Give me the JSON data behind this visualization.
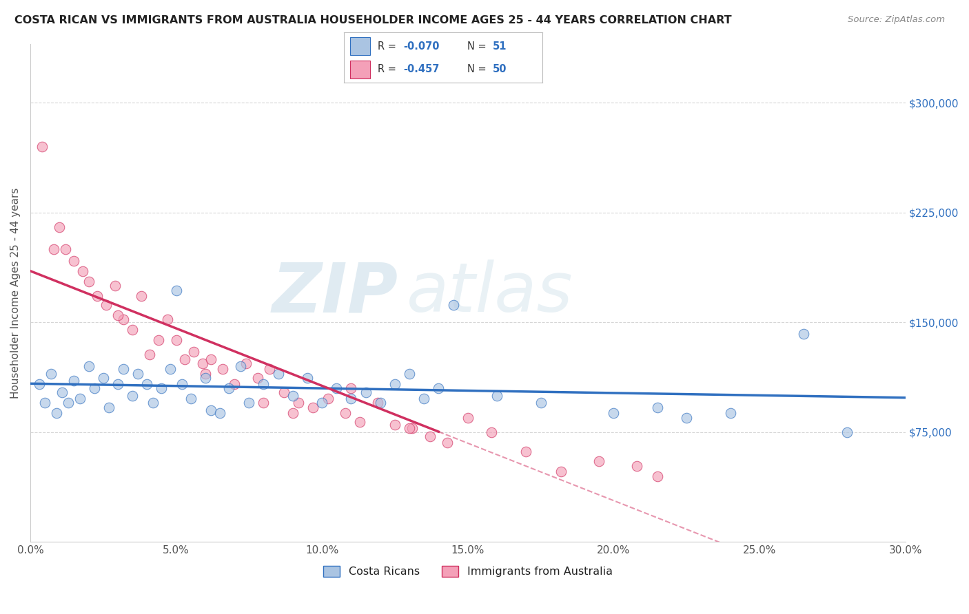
{
  "title": "COSTA RICAN VS IMMIGRANTS FROM AUSTRALIA HOUSEHOLDER INCOME AGES 25 - 44 YEARS CORRELATION CHART",
  "source": "Source: ZipAtlas.com",
  "xlabel_vals": [
    0.0,
    5.0,
    10.0,
    15.0,
    20.0,
    25.0,
    30.0
  ],
  "ylabel_ticks": [
    "$75,000",
    "$150,000",
    "$225,000",
    "$300,000"
  ],
  "ylabel_vals": [
    75000,
    150000,
    225000,
    300000
  ],
  "xlim": [
    0.0,
    30.0
  ],
  "ylim": [
    0,
    340000
  ],
  "ylabel_label": "Householder Income Ages 25 - 44 years",
  "legend_blue_label": "Costa Ricans",
  "legend_pink_label": "Immigrants from Australia",
  "R_blue": -0.07,
  "N_blue": 51,
  "R_pink": -0.457,
  "N_pink": 50,
  "blue_color": "#aac4e2",
  "pink_color": "#f4a0b8",
  "line_blue": "#3070c0",
  "line_pink": "#d03060",
  "blue_scatter": [
    [
      0.3,
      108000
    ],
    [
      0.5,
      95000
    ],
    [
      0.7,
      115000
    ],
    [
      0.9,
      88000
    ],
    [
      1.1,
      102000
    ],
    [
      1.3,
      95000
    ],
    [
      1.5,
      110000
    ],
    [
      1.7,
      98000
    ],
    [
      2.0,
      120000
    ],
    [
      2.2,
      105000
    ],
    [
      2.5,
      112000
    ],
    [
      2.7,
      92000
    ],
    [
      3.0,
      108000
    ],
    [
      3.2,
      118000
    ],
    [
      3.5,
      100000
    ],
    [
      3.7,
      115000
    ],
    [
      4.0,
      108000
    ],
    [
      4.2,
      95000
    ],
    [
      4.5,
      105000
    ],
    [
      4.8,
      118000
    ],
    [
      5.0,
      172000
    ],
    [
      5.2,
      108000
    ],
    [
      5.5,
      98000
    ],
    [
      6.0,
      112000
    ],
    [
      6.2,
      90000
    ],
    [
      6.5,
      88000
    ],
    [
      6.8,
      105000
    ],
    [
      7.2,
      120000
    ],
    [
      7.5,
      95000
    ],
    [
      8.0,
      108000
    ],
    [
      8.5,
      115000
    ],
    [
      9.0,
      100000
    ],
    [
      9.5,
      112000
    ],
    [
      10.0,
      95000
    ],
    [
      10.5,
      105000
    ],
    [
      11.0,
      98000
    ],
    [
      11.5,
      102000
    ],
    [
      12.0,
      95000
    ],
    [
      12.5,
      108000
    ],
    [
      13.0,
      115000
    ],
    [
      13.5,
      98000
    ],
    [
      14.0,
      105000
    ],
    [
      14.5,
      162000
    ],
    [
      16.0,
      100000
    ],
    [
      17.5,
      95000
    ],
    [
      20.0,
      88000
    ],
    [
      21.5,
      92000
    ],
    [
      22.5,
      85000
    ],
    [
      24.0,
      88000
    ],
    [
      26.5,
      142000
    ],
    [
      28.0,
      75000
    ]
  ],
  "pink_scatter": [
    [
      0.4,
      270000
    ],
    [
      0.8,
      200000
    ],
    [
      1.0,
      215000
    ],
    [
      1.2,
      200000
    ],
    [
      1.5,
      192000
    ],
    [
      1.8,
      185000
    ],
    [
      2.0,
      178000
    ],
    [
      2.3,
      168000
    ],
    [
      2.6,
      162000
    ],
    [
      2.9,
      175000
    ],
    [
      3.2,
      152000
    ],
    [
      3.5,
      145000
    ],
    [
      3.8,
      168000
    ],
    [
      4.1,
      128000
    ],
    [
      4.4,
      138000
    ],
    [
      4.7,
      152000
    ],
    [
      5.0,
      138000
    ],
    [
      5.3,
      125000
    ],
    [
      5.6,
      130000
    ],
    [
      5.9,
      122000
    ],
    [
      6.2,
      125000
    ],
    [
      6.6,
      118000
    ],
    [
      7.0,
      108000
    ],
    [
      7.4,
      122000
    ],
    [
      7.8,
      112000
    ],
    [
      8.2,
      118000
    ],
    [
      8.7,
      102000
    ],
    [
      9.2,
      95000
    ],
    [
      9.7,
      92000
    ],
    [
      10.2,
      98000
    ],
    [
      10.8,
      88000
    ],
    [
      11.3,
      82000
    ],
    [
      11.9,
      95000
    ],
    [
      12.5,
      80000
    ],
    [
      13.1,
      78000
    ],
    [
      13.7,
      72000
    ],
    [
      14.3,
      68000
    ],
    [
      15.0,
      85000
    ],
    [
      15.8,
      75000
    ],
    [
      17.0,
      62000
    ],
    [
      18.2,
      48000
    ],
    [
      19.5,
      55000
    ],
    [
      20.8,
      52000
    ],
    [
      21.5,
      45000
    ],
    [
      11.0,
      105000
    ],
    [
      8.0,
      95000
    ],
    [
      6.0,
      115000
    ],
    [
      3.0,
      155000
    ],
    [
      13.0,
      78000
    ],
    [
      9.0,
      88000
    ]
  ],
  "background_color": "#ffffff",
  "grid_color": "#cccccc",
  "title_color": "#222222",
  "axis_label_color": "#555555",
  "tick_label_color_y": "#3070c0",
  "tick_label_color_x": "#555555",
  "source_color": "#888888",
  "watermark_color": "#d8e8f0",
  "watermark_text": "ZIPatlas"
}
